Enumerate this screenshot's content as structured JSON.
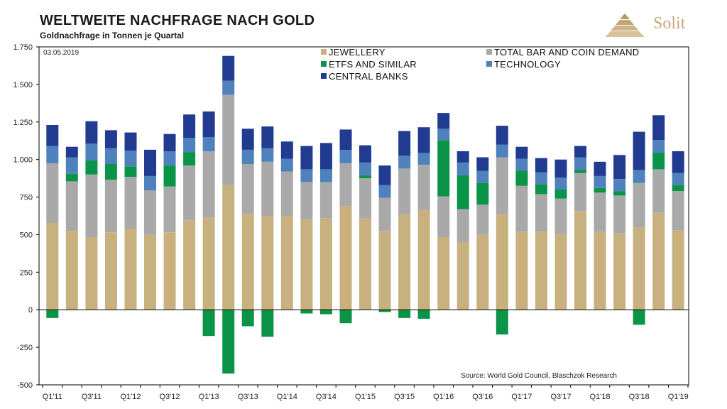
{
  "header": {
    "title": "WELTWEITE NACHFRAGE NACH GOLD",
    "subtitle": "Goldnachfrage in Tonnen je Quartal",
    "logo_text": "Solit"
  },
  "chart_data": {
    "type": "bar",
    "stacked": true,
    "date_note": "03.05.2019",
    "source": "Source: World Gold Council, Blaschzok Research",
    "ylim": [
      -500,
      1750
    ],
    "yticks": [
      -500,
      -250,
      0,
      250,
      500,
      750,
      1000,
      1250,
      1500,
      1750
    ],
    "ytick_labels": [
      "-500",
      "-250",
      "0",
      "250",
      "500",
      "750",
      "1.000",
      "1.250",
      "1.500",
      "1.750"
    ],
    "xtick_labels": [
      "Q1'11",
      "Q3'11",
      "Q1'12",
      "Q3'12",
      "Q1'13",
      "Q3'13",
      "Q1'14",
      "Q3'14",
      "Q1'15",
      "Q3'15",
      "Q1'16",
      "Q3'16",
      "Q1'17",
      "Q3'17",
      "Q1'18",
      "Q3'18",
      "Q1'19"
    ],
    "categories": [
      "Q1'11",
      "Q2'11",
      "Q3'11",
      "Q4'11",
      "Q1'12",
      "Q2'12",
      "Q3'12",
      "Q4'12",
      "Q1'13",
      "Q2'13",
      "Q3'13",
      "Q4'13",
      "Q1'14",
      "Q2'14",
      "Q3'14",
      "Q4'14",
      "Q1'15",
      "Q2'15",
      "Q3'15",
      "Q4'15",
      "Q1'16",
      "Q2'16",
      "Q3'16",
      "Q4'16",
      "Q1'17",
      "Q2'17",
      "Q3'17",
      "Q4'17",
      "Q1'18",
      "Q2'18",
      "Q3'18",
      "Q4'18",
      "Q1'19"
    ],
    "legend_position": "top",
    "grid": false,
    "series": [
      {
        "name": "JEWELLERY",
        "color": "#c8b07f",
        "values": [
          580,
          525,
          485,
          515,
          540,
          500,
          515,
          595,
          615,
          830,
          640,
          625,
          625,
          600,
          610,
          690,
          610,
          525,
          635,
          665,
          485,
          450,
          500,
          635,
          520,
          520,
          505,
          655,
          520,
          510,
          550,
          645,
          530
        ]
      },
      {
        "name": "TOTAL BAR AND COIN DEMAND",
        "color": "#a9a9a9",
        "values": [
          395,
          330,
          415,
          350,
          345,
          295,
          305,
          365,
          440,
          600,
          330,
          360,
          295,
          250,
          240,
          285,
          265,
          220,
          305,
          300,
          270,
          220,
          200,
          380,
          305,
          250,
          235,
          255,
          260,
          250,
          295,
          290,
          260
        ]
      },
      {
        "name": "ETFS AND SIMILAR",
        "color": "#0b9447",
        "values": [
          -55,
          50,
          95,
          105,
          70,
          0,
          140,
          90,
          -175,
          -425,
          -110,
          -180,
          0,
          -25,
          -30,
          -90,
          20,
          -15,
          -55,
          -60,
          375,
          225,
          145,
          -165,
          100,
          65,
          60,
          20,
          30,
          30,
          -100,
          110,
          40
        ]
      },
      {
        "name": "TECHNOLOGY",
        "color": "#4f81bd",
        "values": [
          115,
          110,
          110,
          105,
          105,
          95,
          95,
          95,
          95,
          95,
          95,
          90,
          85,
          85,
          85,
          90,
          85,
          85,
          85,
          80,
          75,
          85,
          80,
          85,
          80,
          80,
          80,
          85,
          80,
          80,
          85,
          85,
          80
        ]
      },
      {
        "name": "CENTRAL BANKS",
        "color": "#203b8f",
        "values": [
          140,
          70,
          150,
          120,
          120,
          175,
          115,
          155,
          170,
          165,
          140,
          145,
          115,
          155,
          175,
          135,
          115,
          130,
          165,
          170,
          105,
          75,
          90,
          125,
          80,
          95,
          120,
          75,
          95,
          160,
          255,
          165,
          145
        ]
      }
    ]
  }
}
